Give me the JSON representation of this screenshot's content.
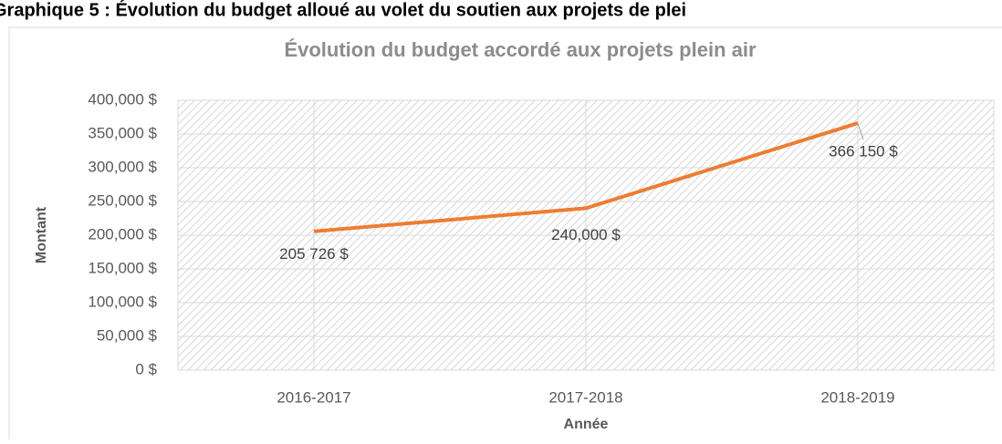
{
  "heading": "Graphique 5 : Évolution du budget alloué au volet du soutien aux projets de plei",
  "chart_data": {
    "type": "line",
    "title": "Évolution du budget accordé aux projets plein air",
    "x_label": "Année",
    "y_label": "Montant",
    "categories": [
      "2016-2017",
      "2017-2018",
      "2018-2019"
    ],
    "series": [
      {
        "name": "Montant",
        "color": "#ed7d31",
        "values": [
          205726,
          240000,
          366150
        ],
        "value_labels": [
          "205 726 $",
          "240,000 $",
          "366 150 $"
        ]
      }
    ],
    "ylim": [
      0,
      400000
    ],
    "yticks": [
      {
        "value": 0,
        "label": "0 $"
      },
      {
        "value": 50000,
        "label": "50,000 $"
      },
      {
        "value": 100000,
        "label": "100,000 $"
      },
      {
        "value": 150000,
        "label": "150,000 $"
      },
      {
        "value": 200000,
        "label": "200,000 $"
      },
      {
        "value": 250000,
        "label": "250,000 $"
      },
      {
        "value": 300000,
        "label": "300,000 $"
      },
      {
        "value": 350000,
        "label": "350,000 $"
      },
      {
        "value": 400000,
        "label": "400,000 $"
      }
    ],
    "grid": true
  }
}
